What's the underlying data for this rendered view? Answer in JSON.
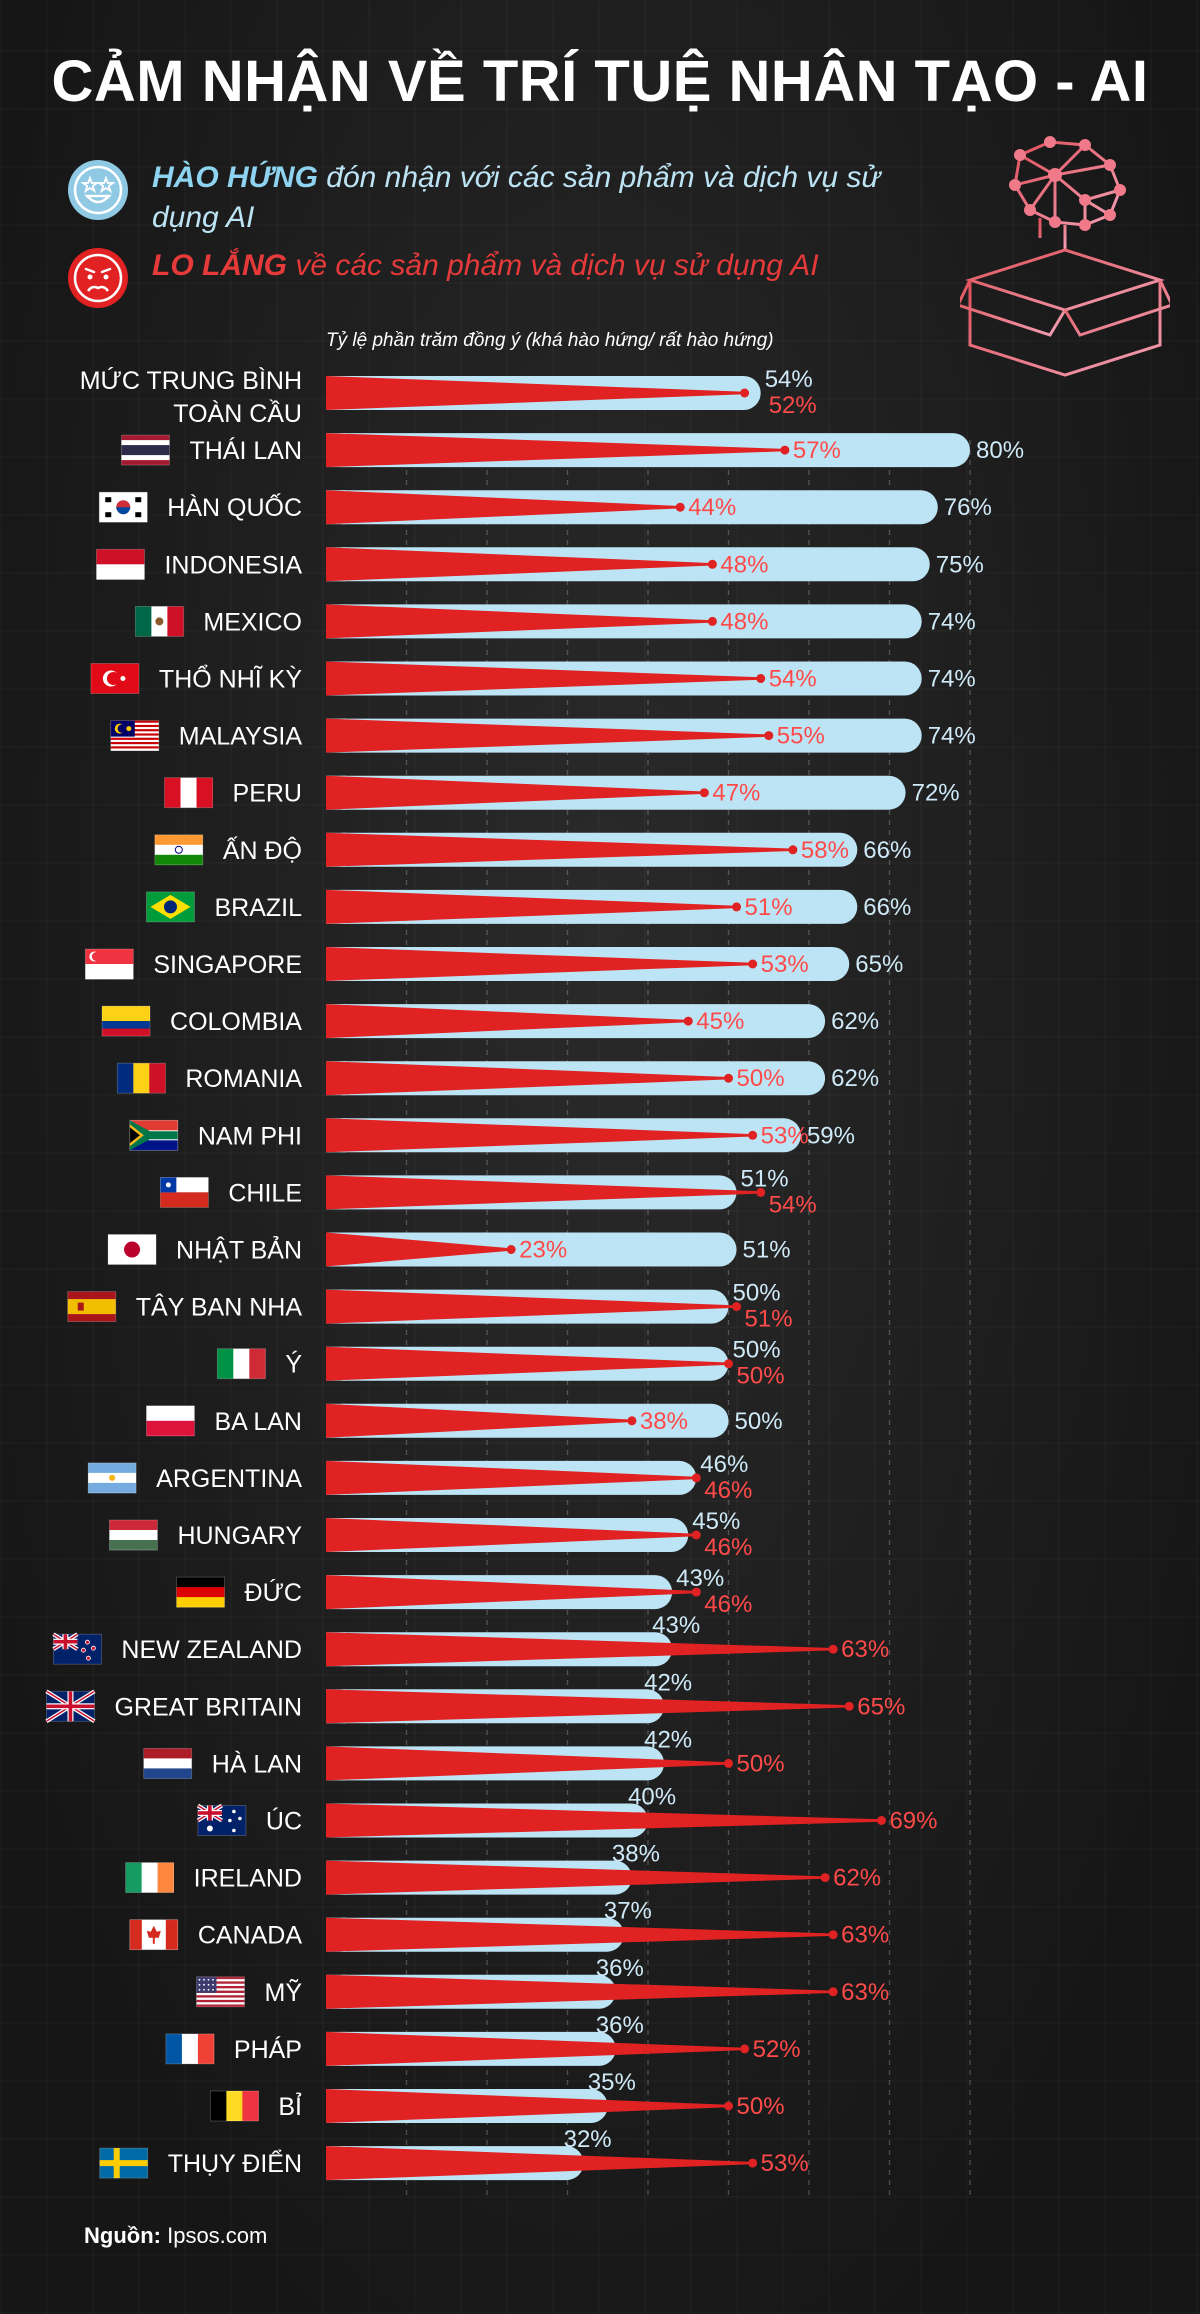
{
  "title": "CẢM NHẬN VỀ TRÍ TUỆ NHÂN TẠO - AI",
  "legend": {
    "excited_bold": "HÀO HỨNG",
    "excited_rest": "đón nhận với các sản phẩm và dịch vụ sử dụng AI",
    "worried_bold": "LO LẮNG",
    "worried_rest": "về các sản phẩm và dịch vụ sử dụng AI"
  },
  "subtitle": "Tỷ lệ phần trăm đồng ý (khá hào hứng/ rất hào hứng)",
  "source": {
    "label": "Nguồn:",
    "value": "Ipsos.com"
  },
  "colors": {
    "excited": "#bde4f5",
    "excited_text": "#cfe9f7",
    "worried": "#e02222",
    "worried_text": "#ff4a4a",
    "background": "#1c1c1c"
  },
  "chart_data": {
    "type": "bar",
    "title": "Tỷ lệ phần trăm đồng ý (khá hào hứng/ rất hào hứng)",
    "unit": "%",
    "xlim": [
      0,
      100
    ],
    "categories": [
      "MỨC TRUNG BÌNH TOÀN CẦU",
      "THÁI LAN",
      "HÀN QUỐC",
      "INDONESIA",
      "MEXICO",
      "THỔ NHĨ KỲ",
      "MALAYSIA",
      "PERU",
      "ẤN ĐỘ",
      "BRAZIL",
      "SINGAPORE",
      "COLOMBIA",
      "ROMANIA",
      "NAM PHI",
      "CHILE",
      "NHẬT BẢN",
      "TÂY BAN NHA",
      "Ý",
      "BA LAN",
      "ARGENTINA",
      "HUNGARY",
      "ĐỨC",
      "NEW ZEALAND",
      "GREAT BRITAIN",
      "HÀ LAN",
      "ÚC",
      "IRELAND",
      "CANADA",
      "MỸ",
      "PHÁP",
      "BỈ",
      "THỤY ĐIỂN"
    ],
    "flags": [
      "none",
      "thailand",
      "korea",
      "indonesia",
      "mexico",
      "turkey",
      "malaysia",
      "peru",
      "india",
      "brazil",
      "singapore",
      "colombia",
      "romania",
      "south-africa",
      "chile",
      "japan",
      "spain",
      "italy",
      "poland",
      "argentina",
      "hungary",
      "germany",
      "new-zealand",
      "great-britain",
      "netherlands",
      "australia",
      "ireland",
      "canada",
      "usa",
      "france",
      "belgium",
      "sweden"
    ],
    "series": [
      {
        "name": "HÀO HỨNG",
        "values": [
          54,
          80,
          76,
          75,
          74,
          74,
          74,
          72,
          66,
          66,
          65,
          62,
          62,
          59,
          51,
          51,
          50,
          50,
          50,
          46,
          45,
          43,
          43,
          42,
          42,
          40,
          38,
          37,
          36,
          36,
          35,
          32
        ]
      },
      {
        "name": "LO LẮNG",
        "values": [
          52,
          57,
          44,
          48,
          48,
          54,
          55,
          47,
          58,
          51,
          53,
          45,
          50,
          53,
          54,
          23,
          51,
          50,
          38,
          46,
          46,
          46,
          63,
          65,
          50,
          69,
          62,
          63,
          63,
          52,
          50,
          53
        ]
      }
    ],
    "value_labels": {
      "excited": [
        "54%",
        "80%",
        "76%",
        "75%",
        "74%",
        "74%",
        "74%",
        "72%",
        "66%",
        "66%",
        "65%",
        "62%",
        "62%",
        "59%",
        "51%",
        "51%",
        "50%",
        "50%",
        "50%",
        "46%",
        "45%",
        "43%",
        "43%",
        "42%",
        "42%",
        "40%",
        "38%",
        "37%",
        "36%",
        "36%",
        "35%",
        "32%"
      ],
      "worried": [
        "52%",
        "57%",
        "44%",
        "48%",
        "48%",
        "54%",
        "55%",
        "47%",
        "58%",
        "51%",
        "53%",
        "45%",
        "50%",
        "53%",
        "54%",
        "23%",
        "51%",
        "50%",
        "38%",
        "46%",
        "46%",
        "46%",
        "63%",
        "65%",
        "50%",
        "69%",
        "62%",
        "63%",
        "63%",
        "52%",
        "50%",
        "53%"
      ]
    }
  }
}
